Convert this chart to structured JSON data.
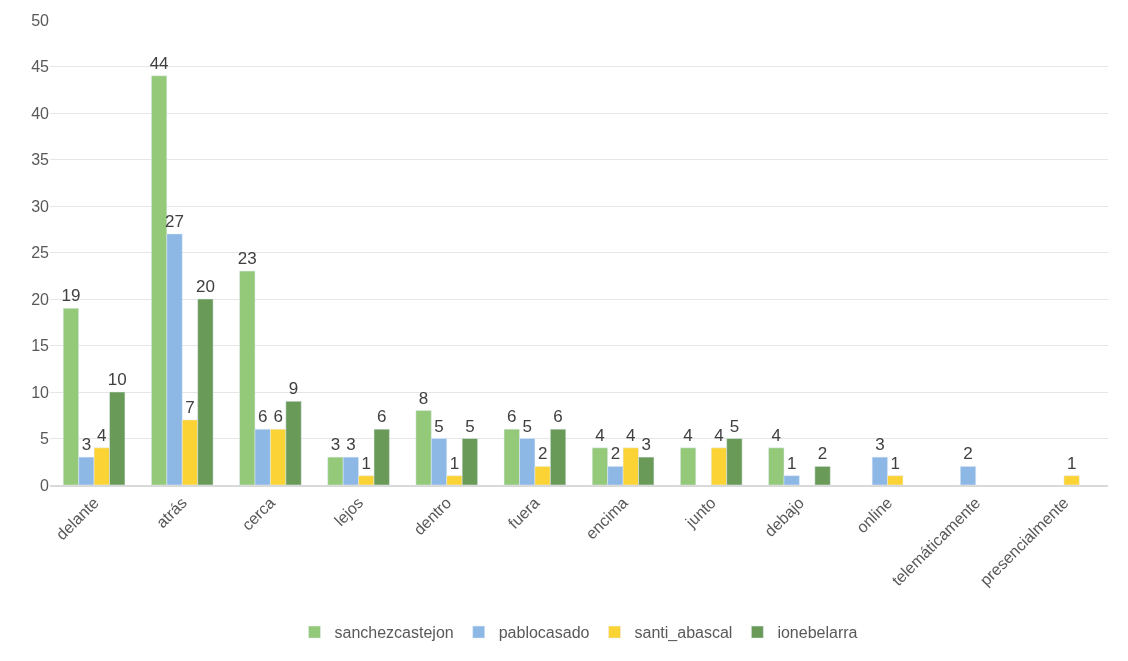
{
  "chart_data": {
    "type": "bar",
    "categories": [
      "delante",
      "atrás",
      "cerca",
      "lejos",
      "dentro",
      "fuera",
      "encima",
      "junto",
      "debajo",
      "online",
      "telemáticamente",
      "presencialmente"
    ],
    "series": [
      {
        "name": "sanchezcastejon",
        "color": "#93c978",
        "values": [
          19,
          44,
          23,
          3,
          8,
          6,
          4,
          4,
          4,
          null,
          null,
          null
        ],
        "value_labels": [
          "19",
          "44",
          "23",
          "3",
          "8",
          "6",
          "4",
          "4",
          "4",
          null,
          null,
          null
        ]
      },
      {
        "name": "pablocasado",
        "color": "#8db8e6",
        "values": [
          3,
          27,
          6,
          3,
          5,
          5,
          2,
          null,
          1,
          3,
          2,
          null
        ],
        "value_labels": [
          "3",
          "27",
          "6",
          "3",
          "5",
          "5",
          "2",
          null,
          "1",
          "3",
          "2",
          null
        ]
      },
      {
        "name": "santi_abascal",
        "color": "#fcd335",
        "values": [
          4,
          7,
          6,
          1,
          1,
          2,
          4,
          4,
          null,
          1,
          null,
          1
        ],
        "value_labels": [
          "4",
          "7",
          "6",
          "1",
          "1",
          "2",
          "4",
          "4",
          null,
          "1",
          null,
          "1"
        ]
      },
      {
        "name": "ionebelarra",
        "color": "#6a9a58",
        "values": [
          10,
          20,
          9,
          6,
          5,
          6,
          3,
          5,
          2,
          null,
          null,
          null
        ],
        "value_labels": [
          "10",
          "20",
          "9",
          "6",
          "5",
          "6",
          "3",
          "5",
          "2",
          null,
          null,
          null
        ]
      }
    ],
    "ylim": [
      0,
      50
    ],
    "yticks": [
      0,
      5,
      10,
      15,
      20,
      25,
      30,
      35,
      40,
      45,
      50
    ],
    "grid": "y",
    "legend": "bottom"
  }
}
